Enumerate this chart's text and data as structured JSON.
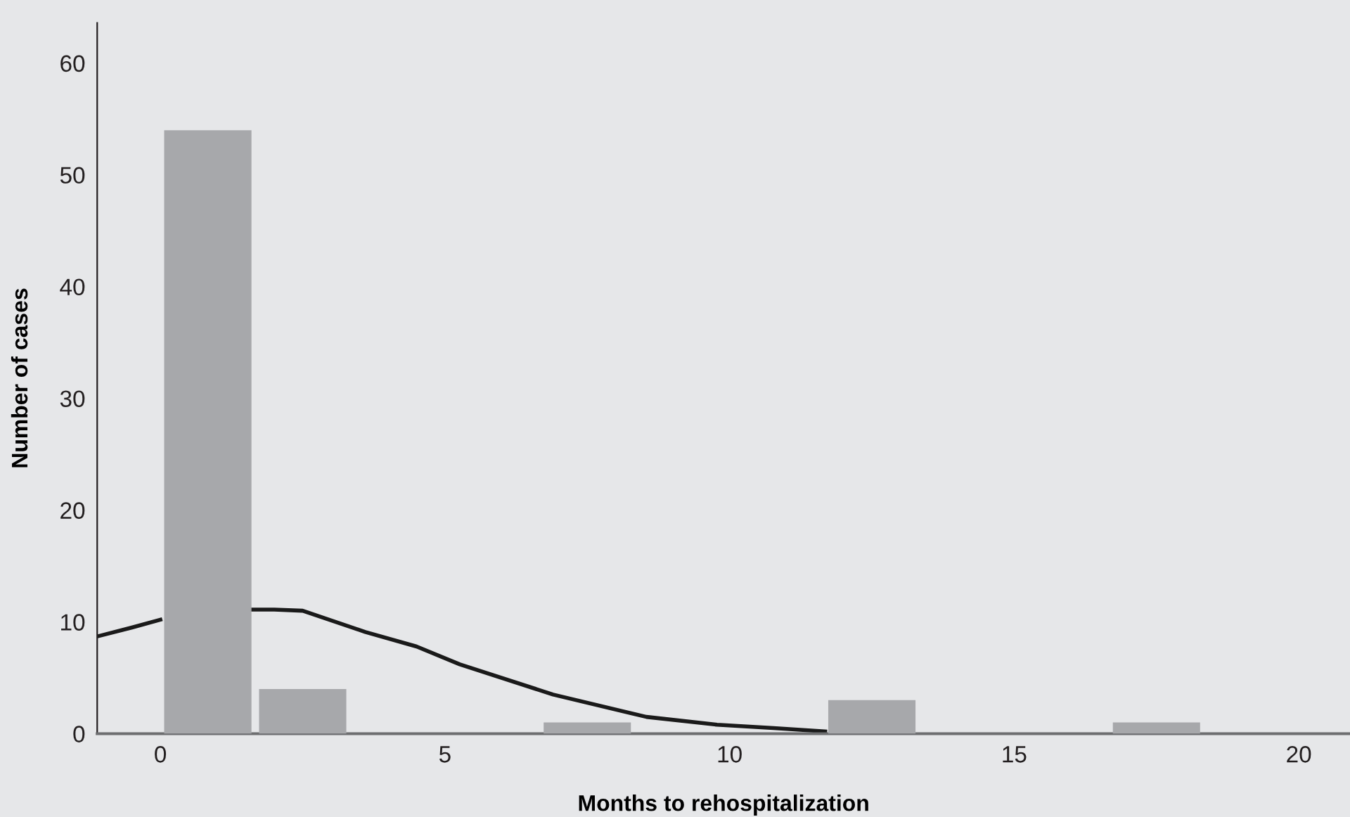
{
  "chart_data": {
    "type": "histogram",
    "xlabel": "Months to rehospitalization",
    "ylabel": "Number of cases",
    "bins": [
      0,
      1.667,
      3.333,
      5,
      6.667,
      8.333,
      10,
      11.667,
      13.333,
      15,
      16.667,
      18.333
    ],
    "values": [
      54,
      4,
      0,
      0,
      1,
      0,
      0,
      3,
      0,
      0,
      1
    ],
    "color": "#a7a8ab",
    "series": [
      {
        "type": "line",
        "color": "#1a1a1a",
        "x": [
          -1.11,
          -0.5,
          0,
          0.5,
          1.1,
          1.6,
          2.0,
          2.5,
          3.6,
          4.5,
          5.26,
          6.9,
          8.54,
          9.78,
          10.77,
          11.68
        ],
        "values": [
          8.7,
          9.5,
          10.2,
          null,
          null,
          11.1,
          11.1,
          11.0,
          9.1,
          7.8,
          6.2,
          3.5,
          1.5,
          0.8,
          0.5,
          0.2
        ]
      }
    ],
    "xlim": [
      -1.11,
      20.9
    ],
    "ylim": [
      0,
      63.6
    ],
    "xticks": [
      0,
      5,
      10,
      15,
      20
    ],
    "yticks": [
      0,
      10,
      20,
      30,
      40,
      50,
      60
    ],
    "grid": false,
    "legend": false
  }
}
